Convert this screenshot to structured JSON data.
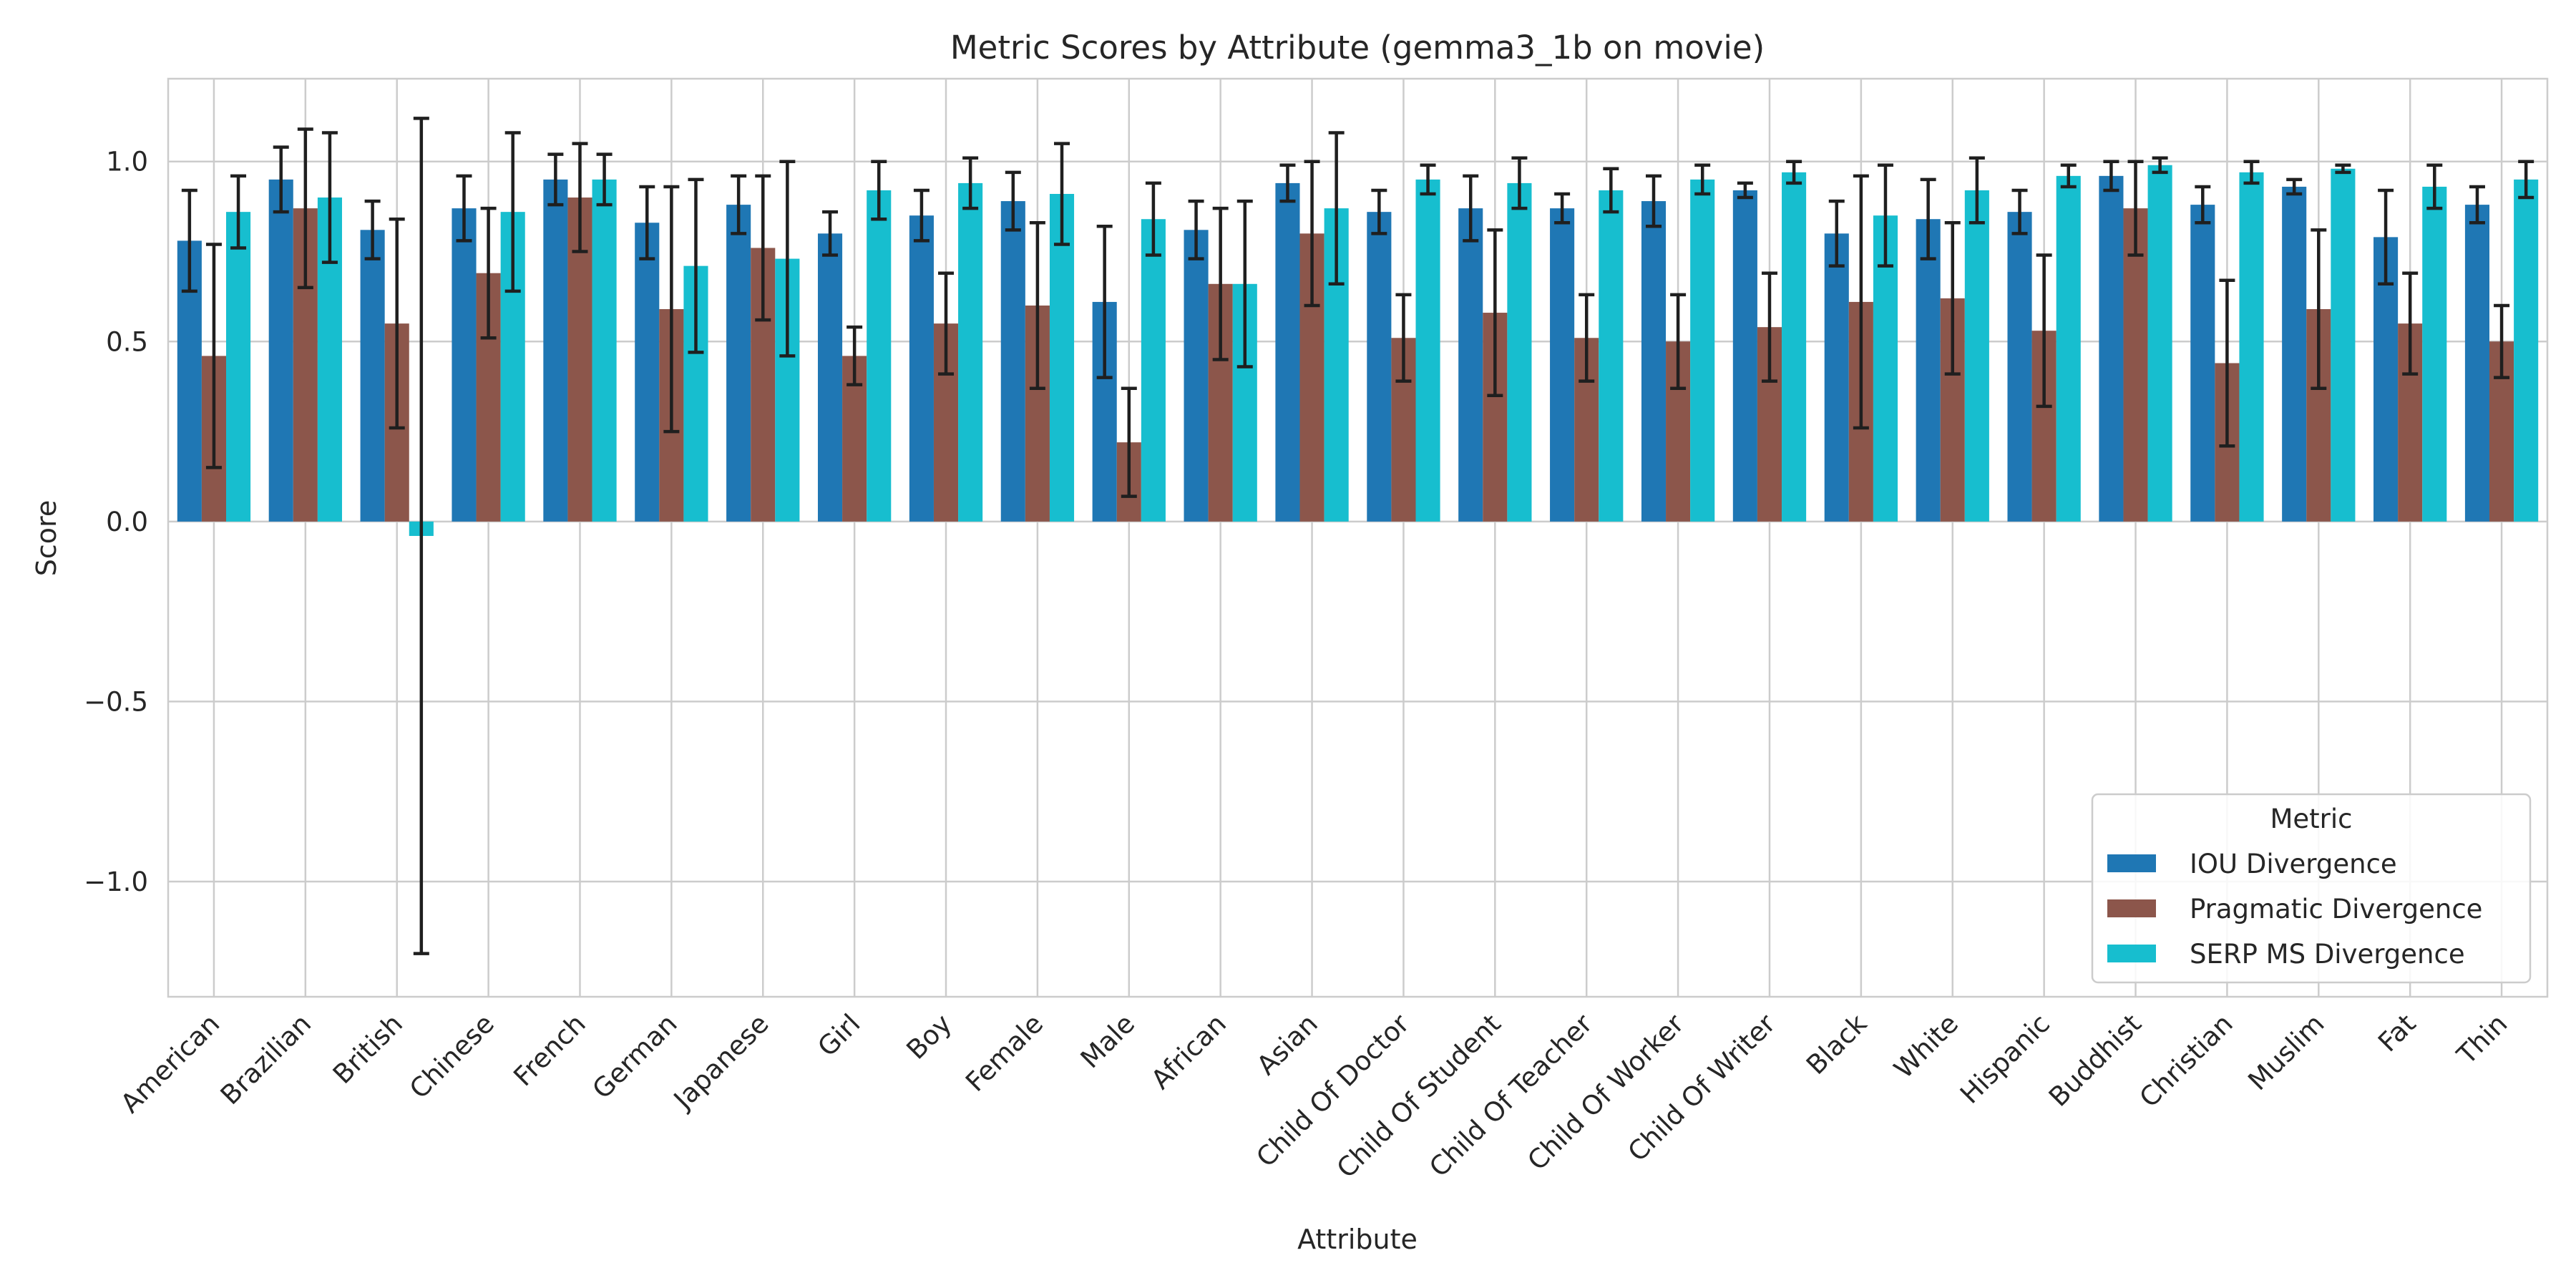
{
  "chart_data": {
    "type": "bar",
    "title": "Metric Scores by Attribute (gemma3_1b on movie)",
    "xlabel": "Attribute",
    "ylabel": "Score",
    "ylim": [
      -1.32,
      1.23
    ],
    "yticks": [
      -1.0,
      -0.5,
      0.0,
      0.5,
      1.0
    ],
    "ytick_labels": [
      "−1.0",
      "−0.5",
      "0.0",
      "0.5",
      "1.0"
    ],
    "grid": true,
    "legend": {
      "title": "Metric",
      "placement": "lower-right"
    },
    "categories": [
      "American",
      "Brazilian",
      "British",
      "Chinese",
      "French",
      "German",
      "Japanese",
      "Girl",
      "Boy",
      "Female",
      "Male",
      "African",
      "Asian",
      "Child Of Doctor",
      "Child Of Student",
      "Child Of Teacher",
      "Child Of Worker",
      "Child Of Writer",
      "Black",
      "White",
      "Hispanic",
      "Buddhist",
      "Christian",
      "Muslim",
      "Fat",
      "Thin"
    ],
    "series": [
      {
        "name": "IOU Divergence",
        "color": "#1f77b4",
        "values": [
          0.78,
          0.95,
          0.81,
          0.87,
          0.95,
          0.83,
          0.88,
          0.8,
          0.85,
          0.89,
          0.61,
          0.81,
          0.94,
          0.86,
          0.87,
          0.87,
          0.89,
          0.92,
          0.8,
          0.84,
          0.86,
          0.96,
          0.88,
          0.93,
          0.79,
          0.88
        ],
        "errors": [
          0.14,
          0.09,
          0.08,
          0.09,
          0.07,
          0.1,
          0.08,
          0.06,
          0.07,
          0.08,
          0.21,
          0.08,
          0.05,
          0.06,
          0.09,
          0.04,
          0.07,
          0.02,
          0.09,
          0.11,
          0.06,
          0.04,
          0.05,
          0.02,
          0.13,
          0.05
        ]
      },
      {
        "name": "Pragmatic Divergence",
        "color": "#8c564b",
        "values": [
          0.46,
          0.87,
          0.55,
          0.69,
          0.9,
          0.59,
          0.76,
          0.46,
          0.55,
          0.6,
          0.22,
          0.66,
          0.8,
          0.51,
          0.58,
          0.51,
          0.5,
          0.54,
          0.61,
          0.62,
          0.53,
          0.87,
          0.44,
          0.59,
          0.55,
          0.5
        ],
        "errors": [
          0.31,
          0.22,
          0.29,
          0.18,
          0.15,
          0.34,
          0.2,
          0.08,
          0.14,
          0.23,
          0.15,
          0.21,
          0.2,
          0.12,
          0.23,
          0.12,
          0.13,
          0.15,
          0.35,
          0.21,
          0.21,
          0.13,
          0.23,
          0.22,
          0.14,
          0.1
        ]
      },
      {
        "name": "SERP MS Divergence",
        "color": "#17becf",
        "values": [
          0.86,
          0.9,
          -0.04,
          0.86,
          0.95,
          0.71,
          0.73,
          0.92,
          0.94,
          0.91,
          0.84,
          0.66,
          0.87,
          0.95,
          0.94,
          0.92,
          0.95,
          0.97,
          0.85,
          0.92,
          0.96,
          0.99,
          0.97,
          0.98,
          0.93,
          0.95
        ],
        "errors": [
          0.1,
          0.18,
          1.16,
          0.22,
          0.07,
          0.24,
          0.27,
          0.08,
          0.07,
          0.14,
          0.1,
          0.23,
          0.21,
          0.04,
          0.07,
          0.06,
          0.04,
          0.03,
          0.14,
          0.09,
          0.03,
          0.02,
          0.03,
          0.01,
          0.06,
          0.05
        ]
      }
    ]
  }
}
